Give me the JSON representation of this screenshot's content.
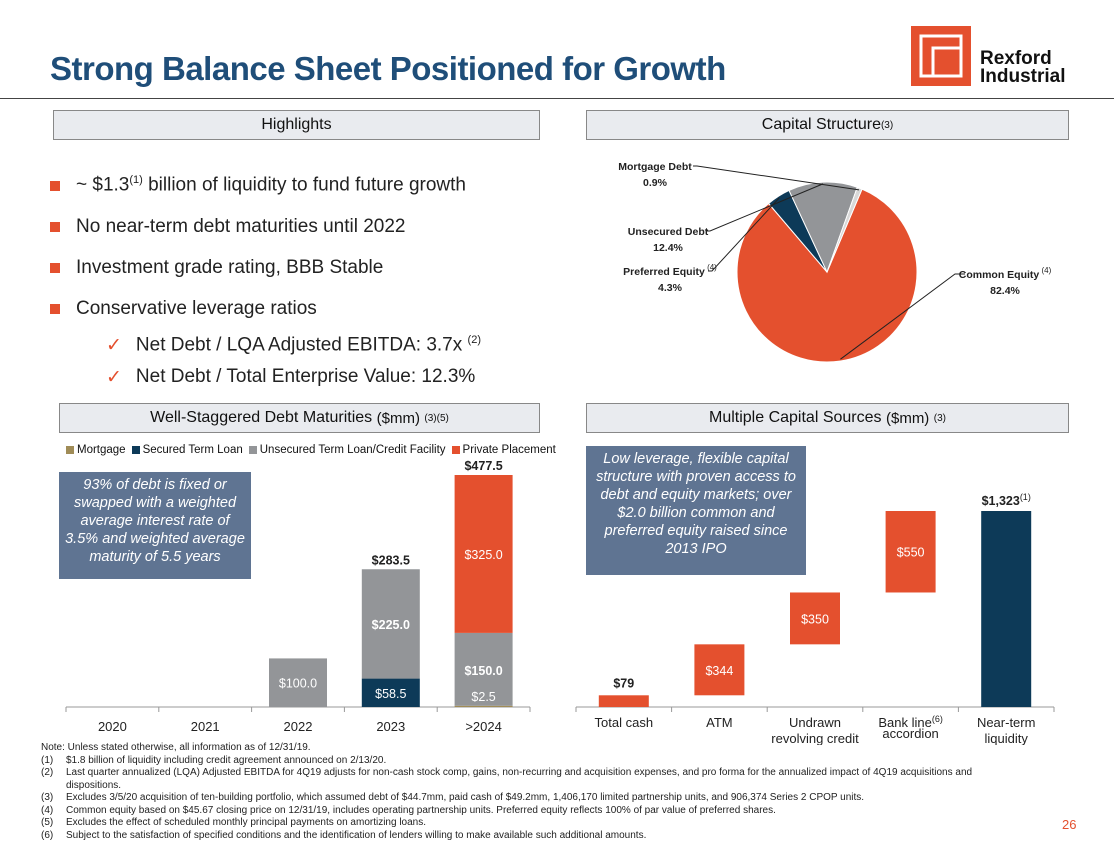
{
  "title": "Strong Balance Sheet Positioned for Growth",
  "logo": {
    "text": "Rexford\nIndustrial"
  },
  "highlights": {
    "header": "Highlights",
    "items": [
      {
        "pre": "~ $1.3",
        "sup": "(1)",
        "post": " billion of liquidity to fund future growth"
      },
      {
        "text": "No near-term debt maturities until 2022"
      },
      {
        "text": "Investment grade rating, BBB Stable"
      },
      {
        "text": "Conservative leverage ratios"
      }
    ],
    "sub_items": [
      {
        "text": "Net Debt / LQA Adjusted EBITDA: 3.7x",
        "sup": "(2)"
      },
      {
        "text": "Net Debt / Total Enterprise Value: 12.3%"
      }
    ]
  },
  "capital_structure": {
    "header": "Capital Structure",
    "header_sup": "(3)"
  },
  "debt_maturities": {
    "header": "Well-Staggered Debt Maturities",
    "header_unit": "($mm)",
    "header_sup": "(3)(5)",
    "callout": "93% of debt is fixed or swapped with a weighted average interest rate of 3.5% and weighted average maturity of 5.5 years"
  },
  "capital_sources": {
    "header": "Multiple Capital Sources",
    "header_unit": "($mm)",
    "header_sup": "(3)",
    "callout": "Low leverage, flexible capital structure with proven access to debt and equity markets; over $2.0 billion common and preferred equity raised since 2013 IPO"
  },
  "colors": {
    "orange": "#e4502e",
    "navy": "#0d3a58",
    "gray": "#939598",
    "mortgage": "#a08c57",
    "slate": "#5f7492",
    "title": "#1f4e79"
  },
  "chart_data": [
    {
      "type": "pie",
      "slices": [
        {
          "label": "Common Equity",
          "sup": "(4)",
          "value": 82.4,
          "display": "82.4%",
          "color": "#e4502e"
        },
        {
          "label": "Preferred Equity",
          "sup": "(4)",
          "value": 4.3,
          "display": "4.3%",
          "color": "#0d3a58"
        },
        {
          "label": "Unsecured Debt",
          "sup": "",
          "value": 12.4,
          "display": "12.4%",
          "color": "#939598"
        },
        {
          "label": "Mortgage Debt",
          "sup": "",
          "value": 0.9,
          "display": "0.9%",
          "color": "#d8d8d8"
        }
      ]
    },
    {
      "type": "bar",
      "stacked": true,
      "categories": [
        "2020",
        "2021",
        "2022",
        "2023",
        ">2024"
      ],
      "series": [
        {
          "name": "Mortgage",
          "color": "#a08c57",
          "values": [
            0,
            0,
            0,
            0,
            2.5
          ],
          "labels": [
            "",
            "",
            "",
            "",
            "$2.5"
          ]
        },
        {
          "name": "Secured Term Loan",
          "color": "#0d3a58",
          "values": [
            0,
            0,
            0,
            58.5,
            0
          ],
          "labels": [
            "",
            "",
            "",
            "$58.5",
            ""
          ]
        },
        {
          "name": "Unsecured Term Loan/Credit Facility",
          "color": "#939598",
          "values": [
            0,
            0,
            100.0,
            225.0,
            150.0
          ],
          "labels": [
            "",
            "",
            "$100.0",
            "$225.0",
            "$150.0"
          ]
        },
        {
          "name": "Private Placement",
          "color": "#e4502e",
          "values": [
            0,
            0,
            0,
            0,
            325.0
          ],
          "labels": [
            "",
            "",
            "",
            "",
            "$325.0"
          ]
        }
      ],
      "totals": [
        "",
        "",
        "",
        "$283.5",
        "$477.5"
      ],
      "ylim": [
        0,
        477.5
      ],
      "legend": "top"
    },
    {
      "type": "bar",
      "waterfall": true,
      "categories": [
        {
          "label": "Total cash",
          "sup": ""
        },
        {
          "label": "ATM",
          "sup": ""
        },
        {
          "label": "Undrawn revolving credit facility",
          "sup": ""
        },
        {
          "label": "Bank line accordion",
          "sup": "(6)"
        },
        {
          "label": "Near-term liquidity",
          "sup": ""
        }
      ],
      "values": [
        79,
        344,
        350,
        550,
        1323
      ],
      "labels": [
        "$79",
        "$344",
        "$350",
        "$550",
        "$1,323"
      ],
      "total_sup": "(1)",
      "ylim": [
        0,
        1323
      ]
    }
  ],
  "footnotes": {
    "note": "Note: Unless stated otherwise, all information as of 12/31/19.",
    "items": [
      {
        "n": "(1)",
        "text": "$1.8 billion of liquidity including credit agreement announced on 2/13/20."
      },
      {
        "n": "(2)",
        "text": "Last quarter annualized (LQA) Adjusted EBITDA for 4Q19 adjusts for non-cash stock comp, gains, non-recurring and acquisition expenses, and pro forma for the annualized impact of 4Q19 acquisitions and dispositions."
      },
      {
        "n": "(3)",
        "text": "Excludes 3/5/20 acquisition of ten-building portfolio, which assumed debt of $44.7mm, paid cash of $49.2mm, 1,406,170 limited partnership units, and 906,374 Series 2 CPOP units."
      },
      {
        "n": "(4)",
        "text": "Common equity based on $45.67 closing price on 12/31/19, includes operating partnership units. Preferred equity reflects 100% of par value of preferred shares."
      },
      {
        "n": "(5)",
        "text": "Excludes the effect of scheduled monthly principal payments on amortizing loans."
      },
      {
        "n": "(6)",
        "text": "Subject to the satisfaction of specified conditions and the identification of lenders willing to make available such additional amounts."
      }
    ]
  },
  "page_number": "26"
}
